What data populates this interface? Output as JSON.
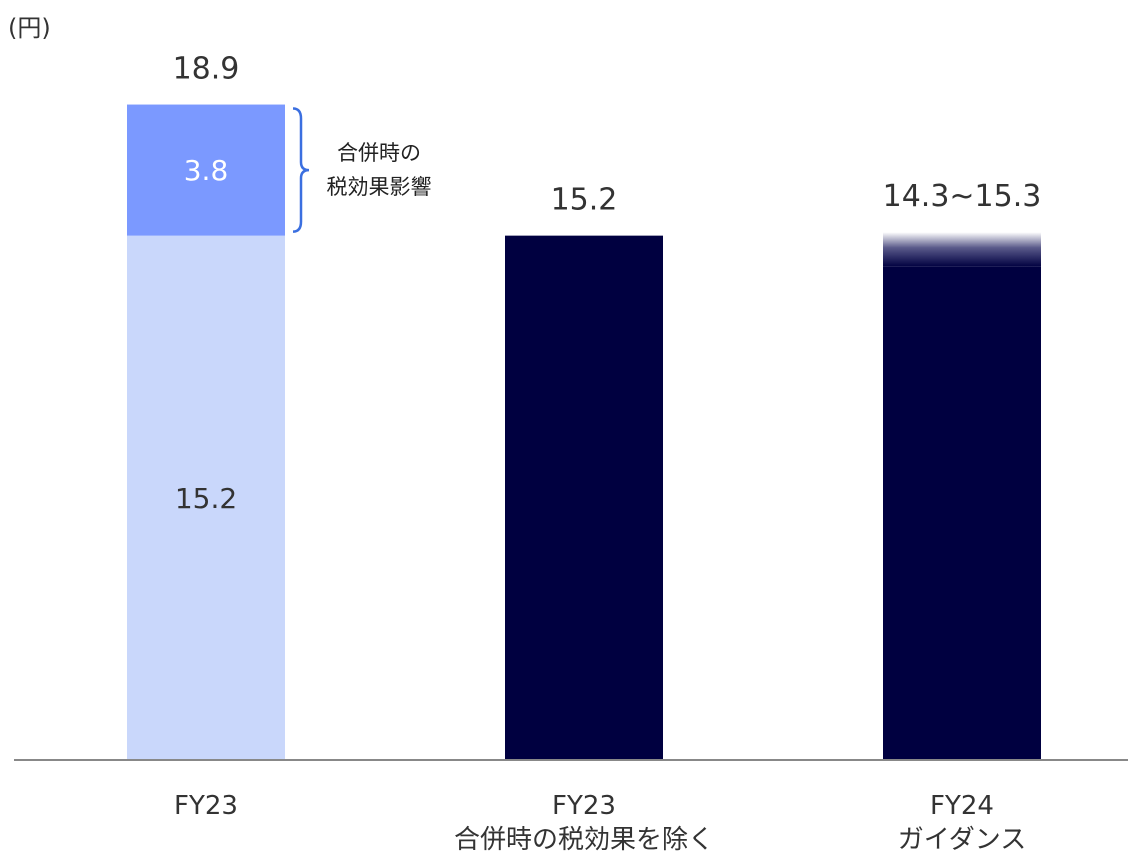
{
  "chart_data": {
    "type": "bar",
    "unit_label": "(円)",
    "categories": [
      {
        "line1": "FY23",
        "line2": ""
      },
      {
        "line1": "FY23",
        "line2": "合併時の税効果を除く"
      },
      {
        "line1": "FY24",
        "line2": "ガイダンス"
      }
    ],
    "series": [
      {
        "name": "",
        "values": [
          15.2,
          15.2,
          14.3
        ],
        "colors": [
          "#c9d7fb",
          "#000040",
          "#000040"
        ]
      },
      {
        "name": "合併時の税効果影響",
        "values": [
          3.8,
          0,
          1.0
        ],
        "colors": [
          "#7b99ff",
          "#000040",
          "#000040"
        ]
      }
    ],
    "total_labels": [
      "18.9",
      "15.2",
      "14.3~15.3"
    ],
    "segment_labels": {
      "base_fy23": "15.2",
      "stack_fy23": "3.8"
    },
    "annotation": {
      "line1": "合併時の",
      "line2": "税効果影響"
    },
    "ylim": [
      0,
      18.9
    ],
    "grid": false,
    "colors": {
      "axis": "#888888",
      "bracket": "#3b6fe0",
      "text": "#333333"
    }
  }
}
